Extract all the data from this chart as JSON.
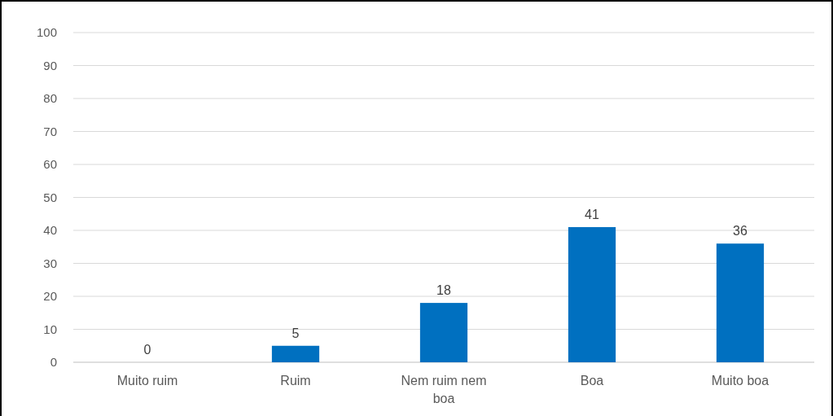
{
  "chart_data": {
    "type": "bar",
    "categories": [
      "Muito ruim",
      "Ruim",
      "Nem ruim nem boa",
      "Boa",
      "Muito boa"
    ],
    "values": [
      0,
      5,
      18,
      41,
      36
    ],
    "color": "#0070c0",
    "ylim": [
      0,
      100
    ],
    "yticks": [
      0,
      10,
      20,
      30,
      40,
      50,
      60,
      70,
      80,
      90,
      100
    ],
    "grid": "y",
    "data_labels": true
  }
}
